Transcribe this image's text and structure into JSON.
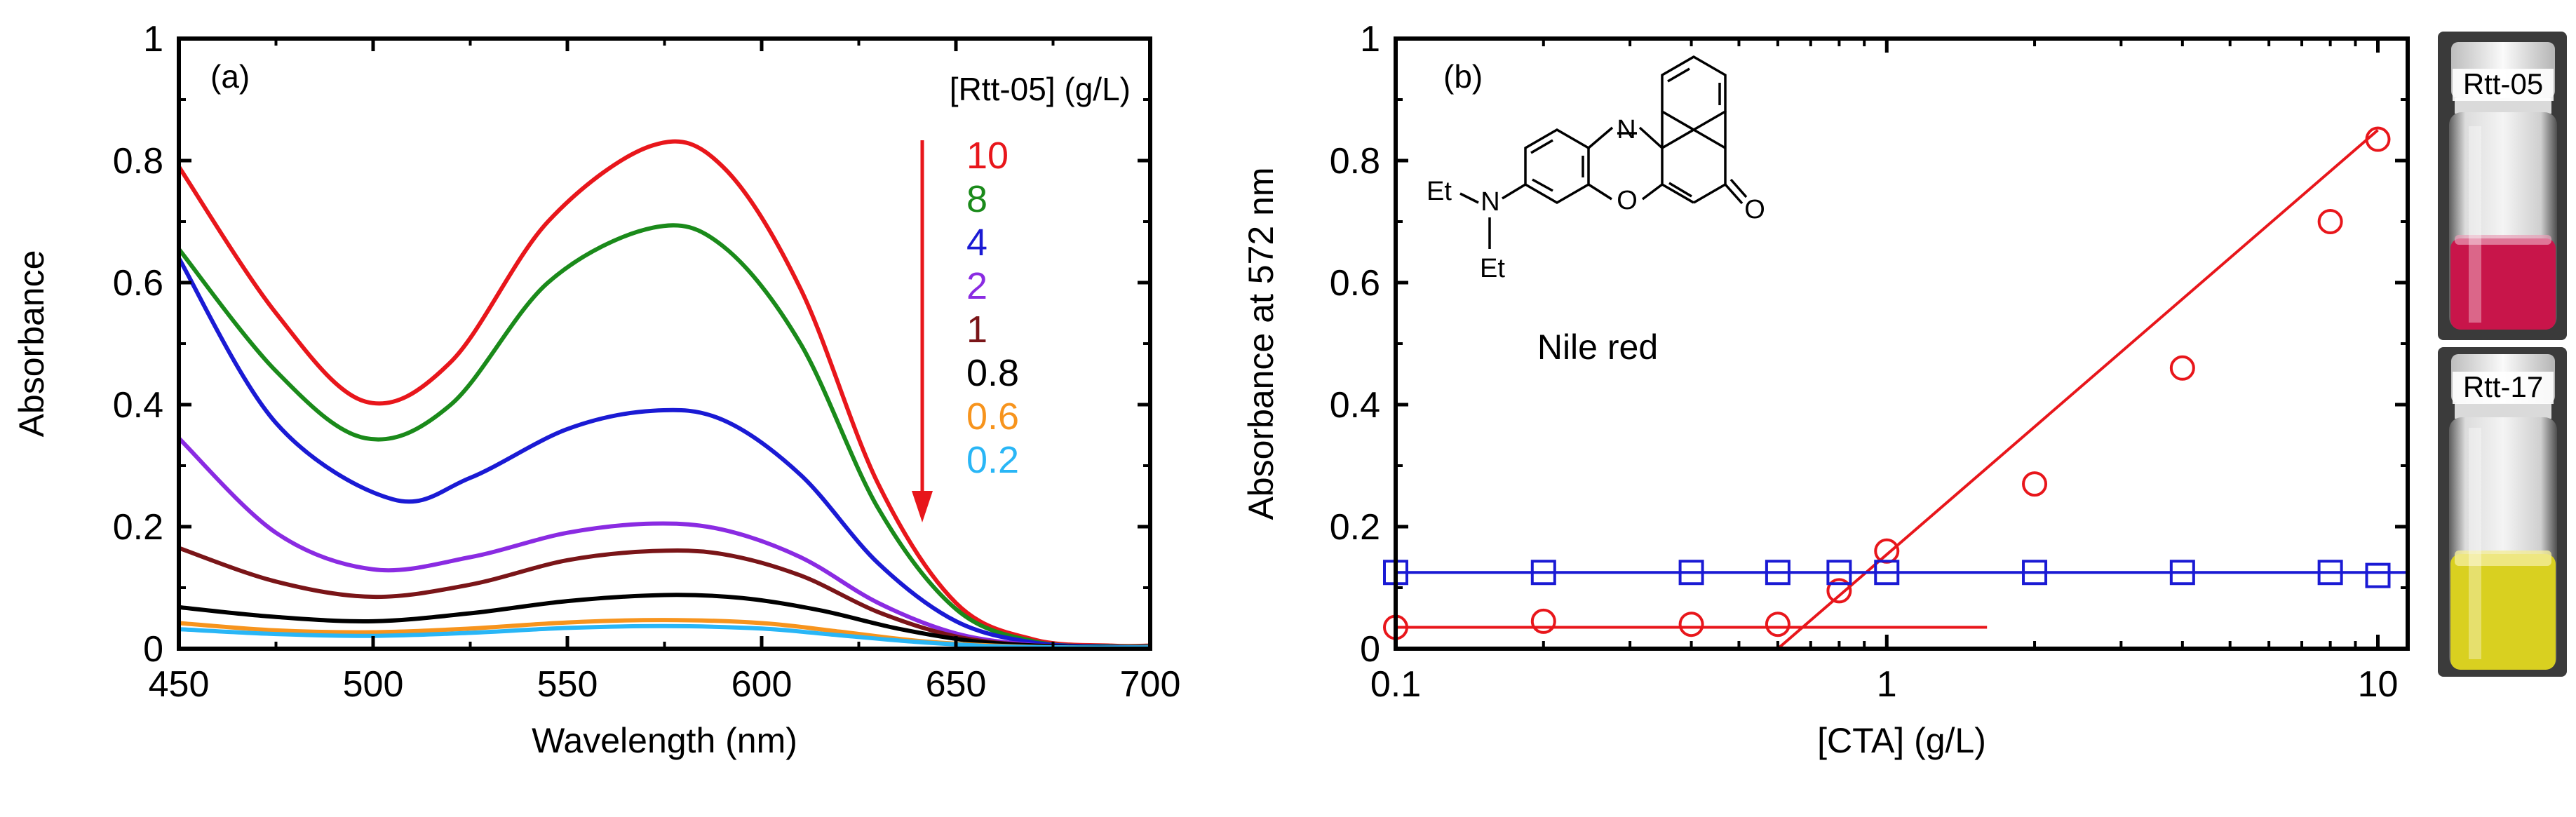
{
  "chart_data": [
    {
      "type": "line",
      "panel_label": "(a)",
      "xlabel": "Wavelength (nm)",
      "ylabel": "Absorbance",
      "xlim": [
        450,
        700
      ],
      "ylim": [
        0,
        1
      ],
      "xticks": [
        "450",
        "500",
        "550",
        "600",
        "650",
        "700"
      ],
      "yticks": [
        "0",
        "0.2",
        "0.4",
        "0.6",
        "0.8",
        "1"
      ],
      "legend_title": "[Rtt-05] (g/L)",
      "legend_placement": "top-right",
      "grid": false,
      "series": [
        {
          "name": "10",
          "color": "#e8161b",
          "x": [
            450,
            475,
            498,
            520,
            545,
            572,
            590,
            610,
            630,
            650,
            670,
            690,
            700
          ],
          "y": [
            0.79,
            0.55,
            0.405,
            0.47,
            0.7,
            0.825,
            0.79,
            0.59,
            0.27,
            0.075,
            0.015,
            0.005,
            0.005
          ]
        },
        {
          "name": "8",
          "color": "#1a8a1a",
          "x": [
            450,
            475,
            498,
            520,
            545,
            572,
            590,
            610,
            630,
            650,
            670,
            690,
            700
          ],
          "y": [
            0.655,
            0.455,
            0.345,
            0.4,
            0.6,
            0.69,
            0.66,
            0.5,
            0.23,
            0.065,
            0.012,
            0.004,
            0.004
          ]
        },
        {
          "name": "4",
          "color": "#1a1ad4",
          "x": [
            450,
            475,
            505,
            525,
            550,
            572,
            590,
            610,
            630,
            650,
            670,
            690,
            700
          ],
          "y": [
            0.64,
            0.37,
            0.245,
            0.28,
            0.36,
            0.39,
            0.375,
            0.285,
            0.14,
            0.045,
            0.01,
            0.003,
            0.003
          ]
        },
        {
          "name": "2",
          "color": "#8a2be2",
          "x": [
            450,
            475,
            500,
            525,
            550,
            572,
            590,
            610,
            630,
            650,
            670,
            690,
            700
          ],
          "y": [
            0.345,
            0.19,
            0.13,
            0.15,
            0.19,
            0.205,
            0.195,
            0.15,
            0.075,
            0.025,
            0.006,
            0.002,
            0.002
          ]
        },
        {
          "name": "1",
          "color": "#7a1518",
          "x": [
            450,
            475,
            500,
            525,
            550,
            572,
            590,
            610,
            630,
            650,
            670,
            690,
            700
          ],
          "y": [
            0.165,
            0.11,
            0.085,
            0.105,
            0.145,
            0.16,
            0.155,
            0.12,
            0.06,
            0.02,
            0.005,
            0.002,
            0.002
          ]
        },
        {
          "name": "0.8",
          "color": "#000000",
          "x": [
            450,
            475,
            500,
            525,
            550,
            575,
            595,
            615,
            635,
            655,
            675,
            690,
            700
          ],
          "y": [
            0.068,
            0.052,
            0.045,
            0.058,
            0.078,
            0.088,
            0.083,
            0.063,
            0.033,
            0.012,
            0.004,
            0.002,
            0.002
          ]
        },
        {
          "name": "0.6",
          "color": "#f7941d",
          "x": [
            450,
            475,
            500,
            525,
            550,
            575,
            600,
            620,
            640,
            660,
            680,
            700
          ],
          "y": [
            0.042,
            0.03,
            0.027,
            0.033,
            0.043,
            0.047,
            0.042,
            0.028,
            0.013,
            0.005,
            0.002,
            0.002
          ]
        },
        {
          "name": "0.2",
          "color": "#29b6f6",
          "x": [
            450,
            475,
            500,
            525,
            550,
            575,
            600,
            620,
            640,
            660,
            680,
            700
          ],
          "y": [
            0.032,
            0.024,
            0.021,
            0.026,
            0.034,
            0.037,
            0.033,
            0.022,
            0.011,
            0.004,
            0.002,
            0.002
          ]
        }
      ]
    },
    {
      "type": "scatter",
      "panel_label": "(b)",
      "xlabel": "[CTA] (g/L)",
      "ylabel": "Absorbance at 572 nm",
      "xscale": "log",
      "xlim": [
        0.1,
        11.5
      ],
      "ylim": [
        0,
        1
      ],
      "xticks": [
        "0.1",
        "1",
        "10"
      ],
      "yticks": [
        "0",
        "0.2",
        "0.4",
        "0.6",
        "0.8",
        "1"
      ],
      "grid": false,
      "compound_label": "Nile red",
      "structure_labels": [
        "N",
        "O",
        "O",
        "Et",
        "N",
        "Et"
      ],
      "series": [
        {
          "marker": "circle",
          "color": "#e8161b",
          "x": [
            0.1,
            0.2,
            0.4,
            0.6,
            0.8,
            1.0,
            2.0,
            4.0,
            8.0,
            10.0
          ],
          "y": [
            0.035,
            0.045,
            0.04,
            0.04,
            0.095,
            0.16,
            0.27,
            0.46,
            0.7,
            0.835
          ]
        },
        {
          "marker": "square",
          "color": "#1a1ad4",
          "x": [
            0.1,
            0.2,
            0.4,
            0.6,
            0.8,
            1.0,
            2.0,
            4.0,
            8.0,
            10.0
          ],
          "y": [
            0.125,
            0.125,
            0.125,
            0.125,
            0.125,
            0.125,
            0.125,
            0.125,
            0.125,
            0.12
          ]
        }
      ],
      "fit_lines": [
        {
          "color": "#e8161b",
          "x": [
            0.1,
            1.6
          ],
          "y": [
            0.035,
            0.035
          ]
        },
        {
          "color": "#e8161b",
          "x": [
            0.6,
            10.0
          ],
          "y": [
            0.0,
            0.85
          ]
        },
        {
          "color": "#1a1ad4",
          "x": [
            0.1,
            11.5
          ],
          "y": [
            0.125,
            0.125
          ]
        }
      ]
    }
  ],
  "photos": [
    {
      "label": "Rtt-05",
      "liquid_color": "#c8154a"
    },
    {
      "label": "Rtt-17",
      "liquid_color": "#d9d020"
    }
  ]
}
